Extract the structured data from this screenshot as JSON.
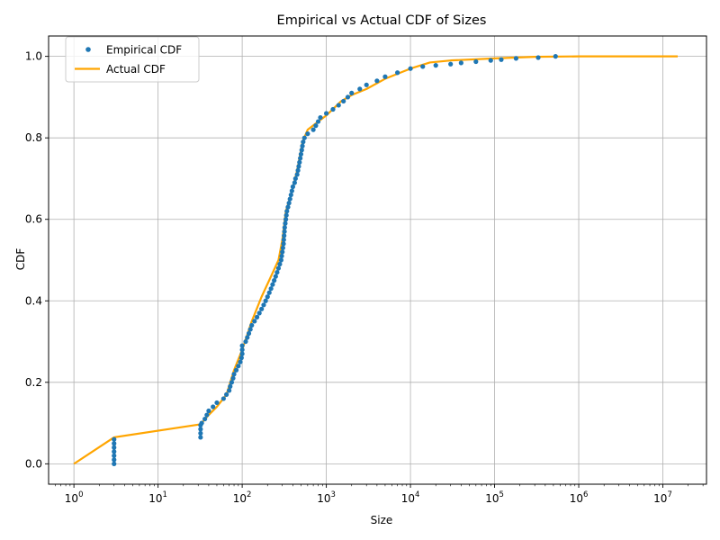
{
  "chart_data": {
    "type": "line",
    "title": "Empirical vs Actual CDF of Sizes",
    "xlabel": "Size",
    "ylabel": "CDF",
    "xscale": "log",
    "xlim": [
      0.5,
      33000000
    ],
    "ylim": [
      -0.05,
      1.05
    ],
    "x_ticks": [
      {
        "value": 1,
        "exp": "0"
      },
      {
        "value": 10,
        "exp": "1"
      },
      {
        "value": 100,
        "exp": "2"
      },
      {
        "value": 1000,
        "exp": "3"
      },
      {
        "value": 10000,
        "exp": "4"
      },
      {
        "value": 100000,
        "exp": "5"
      },
      {
        "value": 1000000,
        "exp": "6"
      },
      {
        "value": 10000000,
        "exp": "7"
      }
    ],
    "x_tick_base": "10",
    "y_ticks": [
      0.0,
      0.2,
      0.4,
      0.6,
      0.8,
      1.0
    ],
    "y_tick_labels": [
      "0.0",
      "0.2",
      "0.4",
      "0.6",
      "0.8",
      "1.0"
    ],
    "grid": true,
    "legend_position": "top-left",
    "series": [
      {
        "name": "Empirical CDF",
        "style": "points",
        "color": "#1f77b4",
        "points": [
          [
            3,
            0.0
          ],
          [
            3,
            0.01
          ],
          [
            3,
            0.02
          ],
          [
            3,
            0.03
          ],
          [
            3,
            0.04
          ],
          [
            3,
            0.05
          ],
          [
            3,
            0.06
          ],
          [
            32,
            0.065
          ],
          [
            32,
            0.075
          ],
          [
            32,
            0.085
          ],
          [
            32,
            0.095
          ],
          [
            33,
            0.1
          ],
          [
            36,
            0.11
          ],
          [
            38,
            0.12
          ],
          [
            40,
            0.13
          ],
          [
            45,
            0.14
          ],
          [
            50,
            0.15
          ],
          [
            60,
            0.16
          ],
          [
            65,
            0.17
          ],
          [
            70,
            0.18
          ],
          [
            72,
            0.19
          ],
          [
            75,
            0.2
          ],
          [
            78,
            0.21
          ],
          [
            80,
            0.22
          ],
          [
            85,
            0.23
          ],
          [
            90,
            0.24
          ],
          [
            95,
            0.25
          ],
          [
            98,
            0.26
          ],
          [
            100,
            0.27
          ],
          [
            100,
            0.28
          ],
          [
            100,
            0.29
          ],
          [
            110,
            0.3
          ],
          [
            115,
            0.31
          ],
          [
            120,
            0.32
          ],
          [
            125,
            0.33
          ],
          [
            130,
            0.34
          ],
          [
            140,
            0.35
          ],
          [
            150,
            0.36
          ],
          [
            160,
            0.37
          ],
          [
            170,
            0.38
          ],
          [
            180,
            0.39
          ],
          [
            190,
            0.4
          ],
          [
            200,
            0.41
          ],
          [
            210,
            0.42
          ],
          [
            220,
            0.43
          ],
          [
            230,
            0.44
          ],
          [
            240,
            0.45
          ],
          [
            250,
            0.46
          ],
          [
            260,
            0.47
          ],
          [
            270,
            0.48
          ],
          [
            280,
            0.49
          ],
          [
            290,
            0.5
          ],
          [
            295,
            0.51
          ],
          [
            300,
            0.52
          ],
          [
            305,
            0.53
          ],
          [
            310,
            0.54
          ],
          [
            312,
            0.55
          ],
          [
            315,
            0.56
          ],
          [
            318,
            0.57
          ],
          [
            320,
            0.58
          ],
          [
            325,
            0.59
          ],
          [
            330,
            0.6
          ],
          [
            335,
            0.61
          ],
          [
            340,
            0.62
          ],
          [
            350,
            0.63
          ],
          [
            360,
            0.64
          ],
          [
            370,
            0.65
          ],
          [
            380,
            0.66
          ],
          [
            390,
            0.67
          ],
          [
            400,
            0.68
          ],
          [
            420,
            0.69
          ],
          [
            430,
            0.7
          ],
          [
            450,
            0.71
          ],
          [
            460,
            0.72
          ],
          [
            470,
            0.73
          ],
          [
            480,
            0.74
          ],
          [
            490,
            0.75
          ],
          [
            500,
            0.76
          ],
          [
            510,
            0.77
          ],
          [
            520,
            0.78
          ],
          [
            530,
            0.79
          ],
          [
            550,
            0.8
          ],
          [
            600,
            0.81
          ],
          [
            700,
            0.82
          ],
          [
            750,
            0.83
          ],
          [
            800,
            0.84
          ],
          [
            850,
            0.85
          ],
          [
            1000,
            0.86
          ],
          [
            1200,
            0.87
          ],
          [
            1400,
            0.88
          ],
          [
            1600,
            0.89
          ],
          [
            1800,
            0.9
          ],
          [
            2000,
            0.91
          ],
          [
            2500,
            0.92
          ],
          [
            3000,
            0.93
          ],
          [
            4000,
            0.94
          ],
          [
            5000,
            0.95
          ],
          [
            7000,
            0.96
          ],
          [
            10000,
            0.97
          ],
          [
            14000,
            0.975
          ],
          [
            20000,
            0.978
          ],
          [
            30000,
            0.981
          ],
          [
            40000,
            0.984
          ],
          [
            60000,
            0.987
          ],
          [
            90000,
            0.99
          ],
          [
            120000,
            0.992
          ],
          [
            180000,
            0.995
          ],
          [
            330000,
            0.997
          ],
          [
            530000,
            1.0
          ]
        ]
      },
      {
        "name": "Actual CDF",
        "style": "line",
        "color": "#ffa500",
        "points": [
          [
            1,
            0.0
          ],
          [
            3,
            0.065
          ],
          [
            32,
            0.097
          ],
          [
            40,
            0.12
          ],
          [
            50,
            0.14
          ],
          [
            65,
            0.17
          ],
          [
            80,
            0.23
          ],
          [
            100,
            0.28
          ],
          [
            130,
            0.35
          ],
          [
            170,
            0.41
          ],
          [
            220,
            0.46
          ],
          [
            270,
            0.5
          ],
          [
            300,
            0.55
          ],
          [
            330,
            0.62
          ],
          [
            380,
            0.66
          ],
          [
            450,
            0.72
          ],
          [
            520,
            0.79
          ],
          [
            600,
            0.82
          ],
          [
            800,
            0.84
          ],
          [
            1000,
            0.855
          ],
          [
            1500,
            0.89
          ],
          [
            2000,
            0.905
          ],
          [
            3000,
            0.92
          ],
          [
            5000,
            0.945
          ],
          [
            10000,
            0.97
          ],
          [
            17000,
            0.985
          ],
          [
            30000,
            0.99
          ],
          [
            100000,
            0.995
          ],
          [
            300000,
            0.999
          ],
          [
            1000000,
            1.0
          ],
          [
            15000000,
            1.0
          ]
        ]
      }
    ]
  }
}
